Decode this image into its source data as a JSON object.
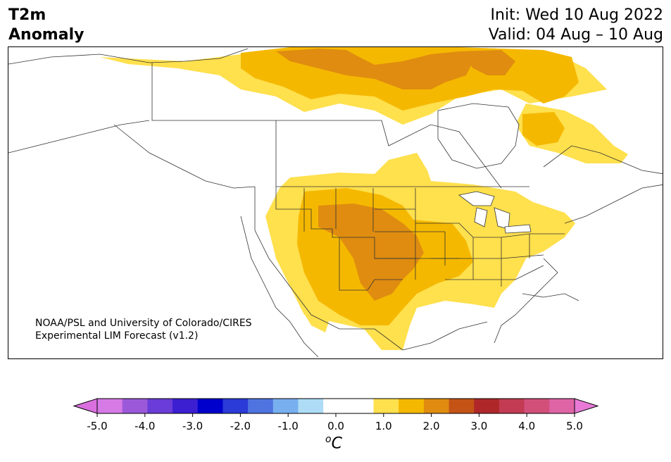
{
  "title": {
    "line1": "T2m",
    "line2": "Anomaly"
  },
  "dates": {
    "init": "Init: Wed 10 Aug 2022",
    "valid": "Valid: 04 Aug – 10 Aug"
  },
  "credit": {
    "line1": "NOAA/PSL and University of Colorado/CIRES",
    "line2": "Experimental LIM Forecast (v1.2)"
  },
  "colorbar": {
    "unit": "C",
    "unit_sup": "o",
    "ticks": [
      "-5.0",
      "-4.0",
      "-3.0",
      "-2.0",
      "-1.0",
      "0.0",
      "1.0",
      "2.0",
      "3.0",
      "4.0",
      "5.0"
    ],
    "under_color": "#da70e0",
    "over_color": "#e87ad6",
    "colors": [
      "#d67ae6",
      "#9b59d9",
      "#6a3cd8",
      "#3b1fd1",
      "#0000cc",
      "#2a3bd8",
      "#4f74e0",
      "#78b0ef",
      "#aedcf7",
      "#ffffff",
      "#ffffff",
      "#ffe04d",
      "#f5b800",
      "#df8c10",
      "#c45316",
      "#b0272a",
      "#c23b52",
      "#d24f7a",
      "#df64a6"
    ]
  },
  "anomaly_colors": {
    "level1": "#ffe04d",
    "level2": "#f5b800",
    "level3": "#df8c10",
    "land": "#ffffff",
    "outline": "#333333"
  }
}
